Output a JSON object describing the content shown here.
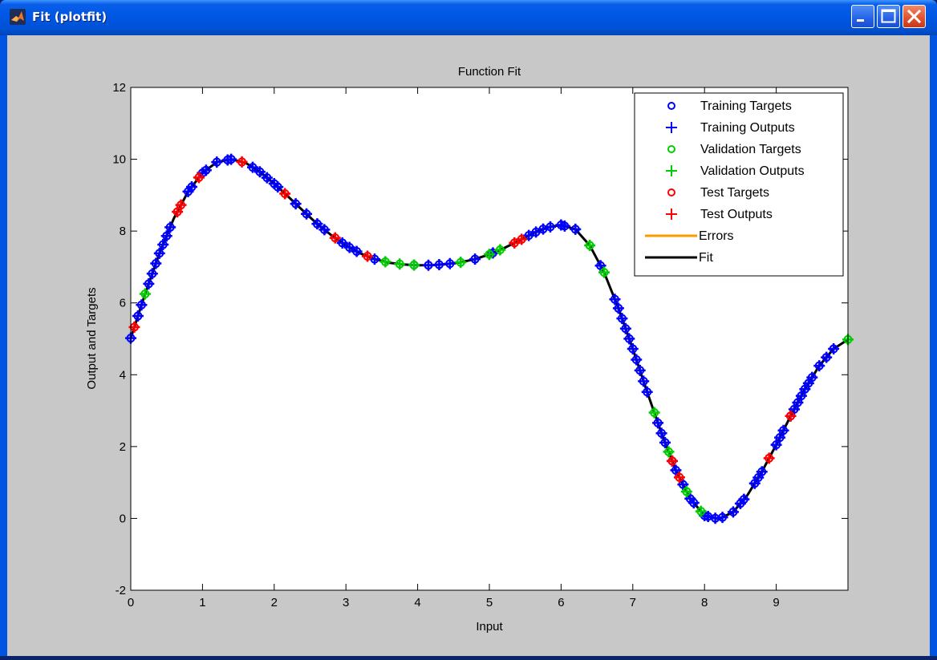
{
  "window": {
    "title": "Fit (plotfit)",
    "buttons": [
      "minimize",
      "maximize",
      "close"
    ]
  },
  "chart_data": {
    "type": "line",
    "title": "Function Fit",
    "xlabel": "Input",
    "ylabel": "Output and Targets",
    "xlim": [
      0,
      10
    ],
    "ylim": [
      -2,
      12
    ],
    "xticks": [
      "0",
      "1",
      "2",
      "3",
      "4",
      "5",
      "6",
      "7",
      "8",
      "9"
    ],
    "yticks": [
      "-2",
      "0",
      "2",
      "4",
      "6",
      "8",
      "10",
      "12"
    ],
    "grid": false,
    "legend_position": "top-right",
    "legend": [
      {
        "label": "Training Targets",
        "marker": "circle",
        "color": "#0000ff"
      },
      {
        "label": "Training Outputs",
        "marker": "plus",
        "color": "#0000ff"
      },
      {
        "label": "Validation Targets",
        "marker": "circle",
        "color": "#00cc00"
      },
      {
        "label": "Validation Outputs",
        "marker": "plus",
        "color": "#00cc00"
      },
      {
        "label": "Test Targets",
        "marker": "circle",
        "color": "#ff0000"
      },
      {
        "label": "Test Outputs",
        "marker": "plus",
        "color": "#ff0000"
      },
      {
        "label": "Errors",
        "marker": "line",
        "color": "#ff9900"
      },
      {
        "label": "Fit",
        "marker": "line",
        "color": "#000000"
      }
    ],
    "fit": {
      "x": [
        0,
        0.2,
        0.4,
        0.6,
        0.8,
        1.0,
        1.2,
        1.4,
        1.6,
        1.8,
        2.0,
        2.2,
        2.4,
        2.6,
        2.8,
        3.0,
        3.2,
        3.4,
        3.6,
        3.8,
        4.0,
        4.2,
        4.4,
        4.6,
        4.8,
        5.0,
        5.2,
        5.4,
        5.6,
        5.8,
        6.0,
        6.2,
        6.4,
        6.6,
        6.8,
        7.0,
        7.2,
        7.4,
        7.6,
        7.8,
        8.0,
        8.2,
        8.4,
        8.6,
        8.8,
        9.0,
        9.2,
        9.4,
        9.6,
        9.8,
        10.0
      ],
      "y": [
        5.02,
        6.25,
        7.38,
        8.35,
        9.1,
        9.62,
        9.92,
        10.0,
        9.9,
        9.65,
        9.32,
        8.95,
        8.57,
        8.2,
        7.88,
        7.6,
        7.38,
        7.22,
        7.12,
        7.07,
        7.05,
        7.05,
        7.08,
        7.13,
        7.22,
        7.35,
        7.52,
        7.72,
        7.93,
        8.1,
        8.17,
        8.05,
        7.6,
        6.85,
        5.85,
        4.72,
        3.52,
        2.37,
        1.34,
        0.55,
        0.08,
        -0.02,
        0.18,
        0.65,
        1.3,
        2.05,
        2.85,
        3.6,
        4.25,
        4.72,
        4.98
      ]
    },
    "points": {
      "training_x": [
        0,
        0.1,
        0.15,
        0.25,
        0.3,
        0.35,
        0.4,
        0.45,
        0.5,
        0.55,
        0.8,
        0.85,
        1.0,
        1.05,
        1.2,
        1.35,
        1.4,
        1.7,
        1.8,
        1.9,
        2.0,
        2.05,
        2.3,
        2.45,
        2.6,
        2.7,
        2.95,
        3.05,
        3.15,
        3.4,
        3.95,
        4.15,
        4.3,
        4.45,
        4.8,
        5.05,
        5.55,
        5.65,
        5.75,
        5.85,
        6.0,
        6.05,
        6.2,
        6.55,
        6.75,
        6.8,
        6.85,
        6.9,
        6.95,
        7.0,
        7.05,
        7.1,
        7.15,
        7.2,
        7.35,
        7.4,
        7.45,
        7.55,
        7.6,
        7.7,
        7.8,
        7.85,
        8.0,
        8.05,
        8.15,
        8.25,
        8.4,
        8.5,
        8.55,
        8.7,
        8.75,
        8.8,
        9.0,
        9.05,
        9.1,
        9.2,
        9.25,
        9.3,
        9.35,
        9.4,
        9.45,
        9.5,
        9.6,
        9.7,
        9.8
      ],
      "validation_x": [
        0.2,
        3.55,
        3.75,
        3.95,
        4.6,
        5.0,
        5.15,
        6.4,
        6.6,
        7.3,
        7.5,
        7.75,
        7.95,
        10.0
      ],
      "test_x": [
        0.05,
        0.65,
        0.7,
        0.95,
        1.55,
        2.15,
        2.85,
        3.3,
        5.35,
        5.45,
        7.55,
        7.65,
        8.9,
        9.2
      ]
    }
  }
}
